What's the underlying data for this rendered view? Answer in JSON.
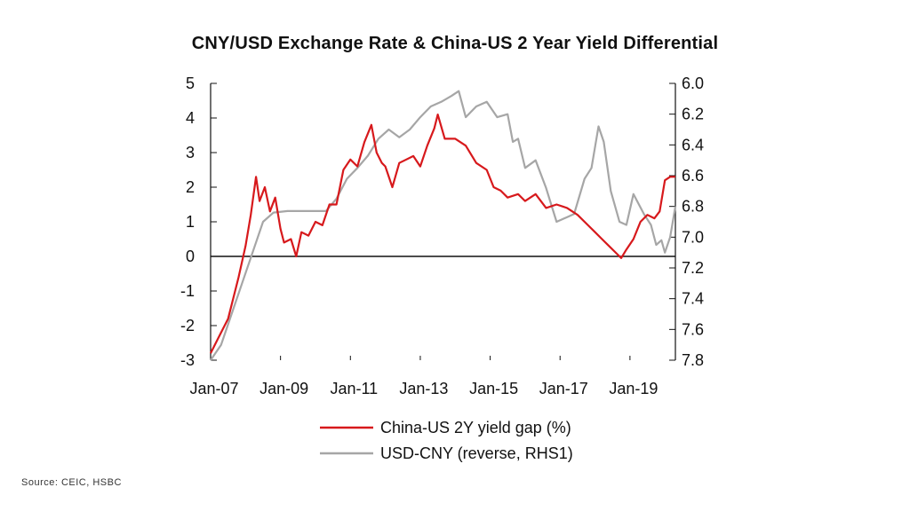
{
  "chart_data": {
    "type": "line",
    "title": "CNY/USD Exchange Rate & China-US 2 Year Yield Differential",
    "source": "Source: CEIC, HSBC",
    "x_ticks": [
      "Jan-07",
      "Jan-09",
      "Jan-11",
      "Jan-13",
      "Jan-15",
      "Jan-17",
      "Jan-19"
    ],
    "x_range": [
      2007.0,
      2020.3
    ],
    "y_left": {
      "ylim": [
        -3,
        5
      ],
      "ticks": [
        "5",
        "4",
        "3",
        "2",
        "1",
        "0",
        "-1",
        "-2",
        "-3"
      ]
    },
    "y_right": {
      "ylim": [
        6.0,
        7.8
      ],
      "reversed": true,
      "ticks": [
        "6.0",
        "6.2",
        "6.4",
        "6.6",
        "6.8",
        "7.0",
        "7.2",
        "7.4",
        "7.6",
        "7.8"
      ]
    },
    "zero_line": 0,
    "legend_position": "bottom",
    "series": [
      {
        "name": "China-US 2Y yield gap (%)",
        "axis": "left",
        "color": "#d7191c",
        "points": [
          [
            2007.0,
            -2.8
          ],
          [
            2007.25,
            -2.3
          ],
          [
            2007.5,
            -1.8
          ],
          [
            2007.8,
            -0.6
          ],
          [
            2008.0,
            0.3
          ],
          [
            2008.15,
            1.2
          ],
          [
            2008.3,
            2.3
          ],
          [
            2008.4,
            1.6
          ],
          [
            2008.55,
            2.0
          ],
          [
            2008.7,
            1.3
          ],
          [
            2008.85,
            1.7
          ],
          [
            2009.0,
            0.8
          ],
          [
            2009.1,
            0.4
          ],
          [
            2009.3,
            0.5
          ],
          [
            2009.45,
            0.0
          ],
          [
            2009.6,
            0.7
          ],
          [
            2009.8,
            0.6
          ],
          [
            2010.0,
            1.0
          ],
          [
            2010.2,
            0.9
          ],
          [
            2010.4,
            1.5
          ],
          [
            2010.6,
            1.5
          ],
          [
            2010.8,
            2.5
          ],
          [
            2011.0,
            2.8
          ],
          [
            2011.2,
            2.6
          ],
          [
            2011.4,
            3.3
          ],
          [
            2011.6,
            3.8
          ],
          [
            2011.75,
            3.0
          ],
          [
            2011.9,
            2.7
          ],
          [
            2012.0,
            2.6
          ],
          [
            2012.2,
            2.0
          ],
          [
            2012.4,
            2.7
          ],
          [
            2012.6,
            2.8
          ],
          [
            2012.8,
            2.9
          ],
          [
            2013.0,
            2.6
          ],
          [
            2013.2,
            3.2
          ],
          [
            2013.4,
            3.7
          ],
          [
            2013.5,
            4.1
          ],
          [
            2013.7,
            3.4
          ],
          [
            2014.0,
            3.4
          ],
          [
            2014.3,
            3.2
          ],
          [
            2014.6,
            2.7
          ],
          [
            2014.9,
            2.5
          ],
          [
            2015.1,
            2.0
          ],
          [
            2015.3,
            1.9
          ],
          [
            2015.5,
            1.7
          ],
          [
            2015.8,
            1.8
          ],
          [
            2016.0,
            1.6
          ],
          [
            2016.3,
            1.8
          ],
          [
            2016.6,
            1.4
          ],
          [
            2016.9,
            1.5
          ],
          [
            2017.2,
            1.4
          ],
          [
            2017.5,
            1.2
          ],
          [
            2017.8,
            0.9
          ],
          [
            2018.0,
            0.7
          ],
          [
            2018.2,
            0.5
          ],
          [
            2018.4,
            0.3
          ],
          [
            2018.6,
            0.1
          ],
          [
            2018.75,
            -0.05
          ],
          [
            2018.9,
            0.2
          ],
          [
            2019.1,
            0.5
          ],
          [
            2019.3,
            1.0
          ],
          [
            2019.5,
            1.2
          ],
          [
            2019.7,
            1.1
          ],
          [
            2019.85,
            1.3
          ],
          [
            2020.0,
            2.2
          ],
          [
            2020.15,
            2.3
          ],
          [
            2020.3,
            2.3
          ]
        ]
      },
      {
        "name": "USD-CNY (reverse, RHS1)",
        "axis": "right",
        "color": "#a6a6a6",
        "points": [
          [
            2007.0,
            7.8
          ],
          [
            2007.3,
            7.7
          ],
          [
            2007.6,
            7.5
          ],
          [
            2007.9,
            7.3
          ],
          [
            2008.2,
            7.1
          ],
          [
            2008.5,
            6.9
          ],
          [
            2008.8,
            6.84
          ],
          [
            2009.2,
            6.83
          ],
          [
            2009.8,
            6.83
          ],
          [
            2010.3,
            6.83
          ],
          [
            2010.6,
            6.75
          ],
          [
            2010.9,
            6.62
          ],
          [
            2011.2,
            6.55
          ],
          [
            2011.5,
            6.47
          ],
          [
            2011.8,
            6.36
          ],
          [
            2012.1,
            6.3
          ],
          [
            2012.4,
            6.35
          ],
          [
            2012.7,
            6.3
          ],
          [
            2013.0,
            6.22
          ],
          [
            2013.3,
            6.15
          ],
          [
            2013.6,
            6.12
          ],
          [
            2013.9,
            6.08
          ],
          [
            2014.1,
            6.05
          ],
          [
            2014.3,
            6.22
          ],
          [
            2014.6,
            6.15
          ],
          [
            2014.9,
            6.12
          ],
          [
            2015.2,
            6.22
          ],
          [
            2015.5,
            6.2
          ],
          [
            2015.65,
            6.38
          ],
          [
            2015.8,
            6.36
          ],
          [
            2016.0,
            6.55
          ],
          [
            2016.3,
            6.5
          ],
          [
            2016.6,
            6.68
          ],
          [
            2016.9,
            6.9
          ],
          [
            2017.1,
            6.88
          ],
          [
            2017.4,
            6.85
          ],
          [
            2017.7,
            6.62
          ],
          [
            2017.9,
            6.55
          ],
          [
            2018.1,
            6.28
          ],
          [
            2018.25,
            6.38
          ],
          [
            2018.45,
            6.7
          ],
          [
            2018.7,
            6.9
          ],
          [
            2018.9,
            6.92
          ],
          [
            2019.1,
            6.72
          ],
          [
            2019.4,
            6.85
          ],
          [
            2019.6,
            6.92
          ],
          [
            2019.75,
            7.05
          ],
          [
            2019.9,
            7.02
          ],
          [
            2020.0,
            7.1
          ],
          [
            2020.15,
            7.0
          ],
          [
            2020.3,
            6.8
          ]
        ]
      }
    ]
  }
}
